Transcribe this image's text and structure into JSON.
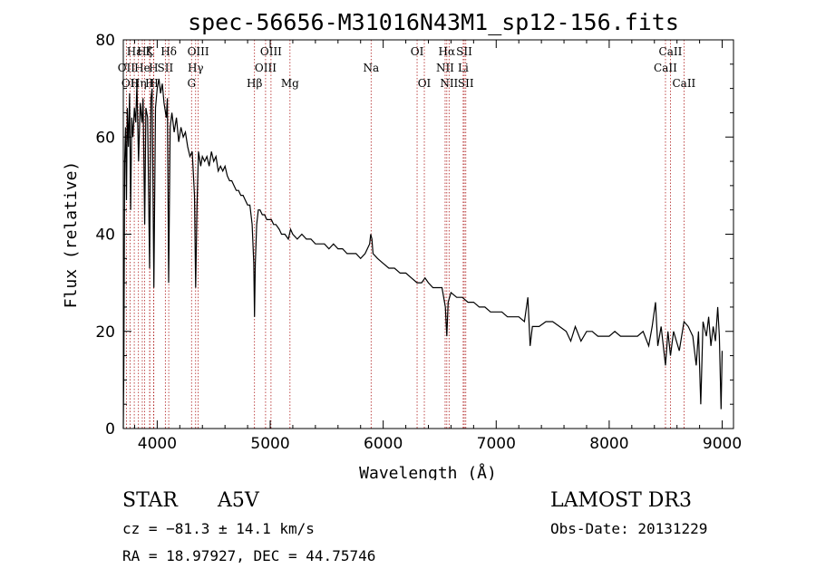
{
  "chart_data": {
    "type": "line",
    "title": "spec-56656-M31016N43M1_sp12-156.fits",
    "xlabel": "Wavelength (Å)",
    "ylabel": "Flux (relative)",
    "xlim": [
      3700,
      9100
    ],
    "ylim": [
      0,
      80
    ],
    "xticks": [
      4000,
      5000,
      6000,
      7000,
      8000,
      9000
    ],
    "yticks": [
      0,
      20,
      40,
      60,
      80
    ],
    "spectrum": [
      [
        3700,
        0
      ],
      [
        3705,
        13
      ],
      [
        3712,
        55
      ],
      [
        3720,
        62
      ],
      [
        3728,
        47
      ],
      [
        3735,
        66
      ],
      [
        3745,
        58
      ],
      [
        3755,
        69
      ],
      [
        3765,
        45
      ],
      [
        3775,
        64
      ],
      [
        3785,
        60
      ],
      [
        3798,
        66
      ],
      [
        3810,
        63
      ],
      [
        3820,
        71
      ],
      [
        3835,
        55
      ],
      [
        3850,
        67
      ],
      [
        3865,
        63
      ],
      [
        3875,
        68
      ],
      [
        3889,
        42
      ],
      [
        3900,
        66
      ],
      [
        3915,
        64
      ],
      [
        3933,
        33
      ],
      [
        3945,
        68
      ],
      [
        3955,
        70
      ],
      [
        3970,
        29
      ],
      [
        3985,
        66
      ],
      [
        4000,
        70
      ],
      [
        4015,
        72
      ],
      [
        4030,
        69
      ],
      [
        4045,
        71
      ],
      [
        4060,
        67
      ],
      [
        4080,
        64
      ],
      [
        4090,
        68
      ],
      [
        4101,
        30
      ],
      [
        4115,
        62
      ],
      [
        4130,
        65
      ],
      [
        4150,
        61
      ],
      [
        4170,
        64
      ],
      [
        4190,
        59
      ],
      [
        4210,
        62
      ],
      [
        4230,
        60
      ],
      [
        4250,
        61
      ],
      [
        4270,
        58
      ],
      [
        4290,
        56
      ],
      [
        4310,
        57
      ],
      [
        4330,
        48
      ],
      [
        4340,
        29
      ],
      [
        4352,
        46
      ],
      [
        4365,
        57
      ],
      [
        4385,
        54
      ],
      [
        4400,
        56
      ],
      [
        4420,
        55
      ],
      [
        4440,
        56
      ],
      [
        4460,
        54
      ],
      [
        4480,
        57
      ],
      [
        4500,
        55
      ],
      [
        4520,
        56
      ],
      [
        4540,
        53
      ],
      [
        4560,
        54
      ],
      [
        4580,
        53
      ],
      [
        4600,
        54
      ],
      [
        4620,
        52
      ],
      [
        4640,
        51
      ],
      [
        4660,
        51
      ],
      [
        4680,
        50
      ],
      [
        4700,
        49
      ],
      [
        4720,
        49
      ],
      [
        4740,
        48
      ],
      [
        4760,
        48
      ],
      [
        4780,
        47
      ],
      [
        4800,
        46
      ],
      [
        4820,
        46
      ],
      [
        4840,
        42
      ],
      [
        4855,
        34
      ],
      [
        4861,
        23
      ],
      [
        4868,
        34
      ],
      [
        4880,
        42
      ],
      [
        4895,
        45
      ],
      [
        4910,
        45
      ],
      [
        4930,
        44
      ],
      [
        4950,
        44
      ],
      [
        4970,
        43
      ],
      [
        4990,
        43
      ],
      [
        5010,
        43
      ],
      [
        5030,
        42
      ],
      [
        5050,
        42
      ],
      [
        5080,
        41
      ],
      [
        5100,
        40
      ],
      [
        5130,
        40
      ],
      [
        5160,
        39
      ],
      [
        5180,
        41
      ],
      [
        5200,
        40
      ],
      [
        5240,
        39
      ],
      [
        5280,
        40
      ],
      [
        5320,
        39
      ],
      [
        5360,
        39
      ],
      [
        5400,
        38
      ],
      [
        5440,
        38
      ],
      [
        5480,
        38
      ],
      [
        5520,
        37
      ],
      [
        5560,
        38
      ],
      [
        5600,
        37
      ],
      [
        5640,
        37
      ],
      [
        5680,
        36
      ],
      [
        5720,
        36
      ],
      [
        5760,
        36
      ],
      [
        5800,
        35
      ],
      [
        5840,
        36
      ],
      [
        5880,
        38
      ],
      [
        5890,
        40
      ],
      [
        5900,
        39
      ],
      [
        5910,
        36
      ],
      [
        5950,
        35
      ],
      [
        6000,
        34
      ],
      [
        6050,
        33
      ],
      [
        6100,
        33
      ],
      [
        6150,
        32
      ],
      [
        6200,
        32
      ],
      [
        6250,
        31
      ],
      [
        6300,
        30
      ],
      [
        6340,
        30
      ],
      [
        6370,
        31
      ],
      [
        6400,
        30
      ],
      [
        6440,
        29
      ],
      [
        6480,
        29
      ],
      [
        6520,
        29
      ],
      [
        6550,
        25
      ],
      [
        6563,
        19
      ],
      [
        6575,
        26
      ],
      [
        6600,
        28
      ],
      [
        6650,
        27
      ],
      [
        6700,
        27
      ],
      [
        6750,
        26
      ],
      [
        6800,
        26
      ],
      [
        6850,
        25
      ],
      [
        6900,
        25
      ],
      [
        6950,
        24
      ],
      [
        7000,
        24
      ],
      [
        7050,
        24
      ],
      [
        7100,
        23
      ],
      [
        7150,
        23
      ],
      [
        7200,
        23
      ],
      [
        7250,
        22
      ],
      [
        7280,
        27
      ],
      [
        7300,
        17
      ],
      [
        7320,
        21
      ],
      [
        7380,
        21
      ],
      [
        7440,
        22
      ],
      [
        7500,
        22
      ],
      [
        7560,
        21
      ],
      [
        7620,
        20
      ],
      [
        7660,
        18
      ],
      [
        7700,
        21
      ],
      [
        7750,
        18
      ],
      [
        7800,
        20
      ],
      [
        7850,
        20
      ],
      [
        7900,
        19
      ],
      [
        7950,
        19
      ],
      [
        8000,
        19
      ],
      [
        8050,
        20
      ],
      [
        8100,
        19
      ],
      [
        8150,
        19
      ],
      [
        8200,
        19
      ],
      [
        8250,
        19
      ],
      [
        8300,
        20
      ],
      [
        8350,
        17
      ],
      [
        8380,
        21
      ],
      [
        8410,
        26
      ],
      [
        8430,
        17
      ],
      [
        8460,
        21
      ],
      [
        8498,
        13
      ],
      [
        8520,
        20
      ],
      [
        8542,
        15
      ],
      [
        8570,
        20
      ],
      [
        8620,
        16
      ],
      [
        8662,
        22
      ],
      [
        8700,
        21
      ],
      [
        8740,
        19
      ],
      [
        8770,
        13
      ],
      [
        8790,
        20
      ],
      [
        8810,
        5
      ],
      [
        8830,
        22
      ],
      [
        8860,
        19
      ],
      [
        8880,
        23
      ],
      [
        8900,
        17
      ],
      [
        8920,
        21
      ],
      [
        8940,
        18
      ],
      [
        8960,
        25
      ],
      [
        8975,
        19
      ],
      [
        8990,
        4
      ],
      [
        9000,
        16
      ]
    ],
    "lines": [
      {
        "wl": 3727,
        "label": "OII",
        "row": 2
      },
      {
        "wl": 3760,
        "label": "OII",
        "row": 3
      },
      {
        "wl": 3797,
        "label": "Hε",
        "row": 1
      },
      {
        "wl": 3834,
        "label": "Hη",
        "row": 3
      },
      {
        "wl": 3868,
        "label": "He",
        "row": 2
      },
      {
        "wl": 3889,
        "label": "Hζ",
        "row": 1
      },
      {
        "wl": 3933,
        "label": "K",
        "row": 1
      },
      {
        "wl": 3935,
        "label": "H",
        "row": 3
      },
      {
        "wl": 3968,
        "label": "H",
        "row": 2
      },
      {
        "wl": 3970,
        "label": "H",
        "row": 3
      },
      {
        "wl": 4072,
        "label": "SII",
        "row": 2
      },
      {
        "wl": 4102,
        "label": "Hδ",
        "row": 1
      },
      {
        "wl": 4304,
        "label": "G",
        "row": 3
      },
      {
        "wl": 4340,
        "label": "Hγ",
        "row": 2
      },
      {
        "wl": 4363,
        "label": "OIII",
        "row": 1
      },
      {
        "wl": 4861,
        "label": "Hβ",
        "row": 3
      },
      {
        "wl": 4959,
        "label": "OIII",
        "row": 2
      },
      {
        "wl": 5007,
        "label": "OIII",
        "row": 1
      },
      {
        "wl": 5175,
        "label": "Mg",
        "row": 3
      },
      {
        "wl": 5893,
        "label": "Na",
        "row": 2
      },
      {
        "wl": 6300,
        "label": "OI",
        "row": 1
      },
      {
        "wl": 6364,
        "label": "OI",
        "row": 3
      },
      {
        "wl": 6548,
        "label": "NII",
        "row": 2
      },
      {
        "wl": 6563,
        "label": "Hα",
        "row": 1
      },
      {
        "wl": 6583,
        "label": "NII",
        "row": 3
      },
      {
        "wl": 6708,
        "label": "Li",
        "row": 2
      },
      {
        "wl": 6717,
        "label": "SII",
        "row": 1
      },
      {
        "wl": 6731,
        "label": "SII",
        "row": 3
      },
      {
        "wl": 8498,
        "label": "CaII",
        "row": 2
      },
      {
        "wl": 8542,
        "label": "CaII",
        "row": 1
      },
      {
        "wl": 8662,
        "label": "CaII",
        "row": 3
      }
    ]
  },
  "info": {
    "object_class": "STAR",
    "subclass": "A5V",
    "survey": "LAMOST DR3",
    "cz": "cz = −81.3 ± 14.1 km/s",
    "obs_date": "Obs-Date: 20131229",
    "coords": "RA =  18.97927, DEC =  44.75746"
  },
  "colors": {
    "spectrum": "#000000",
    "line_marker": "#b02020",
    "axis": "#000000"
  }
}
